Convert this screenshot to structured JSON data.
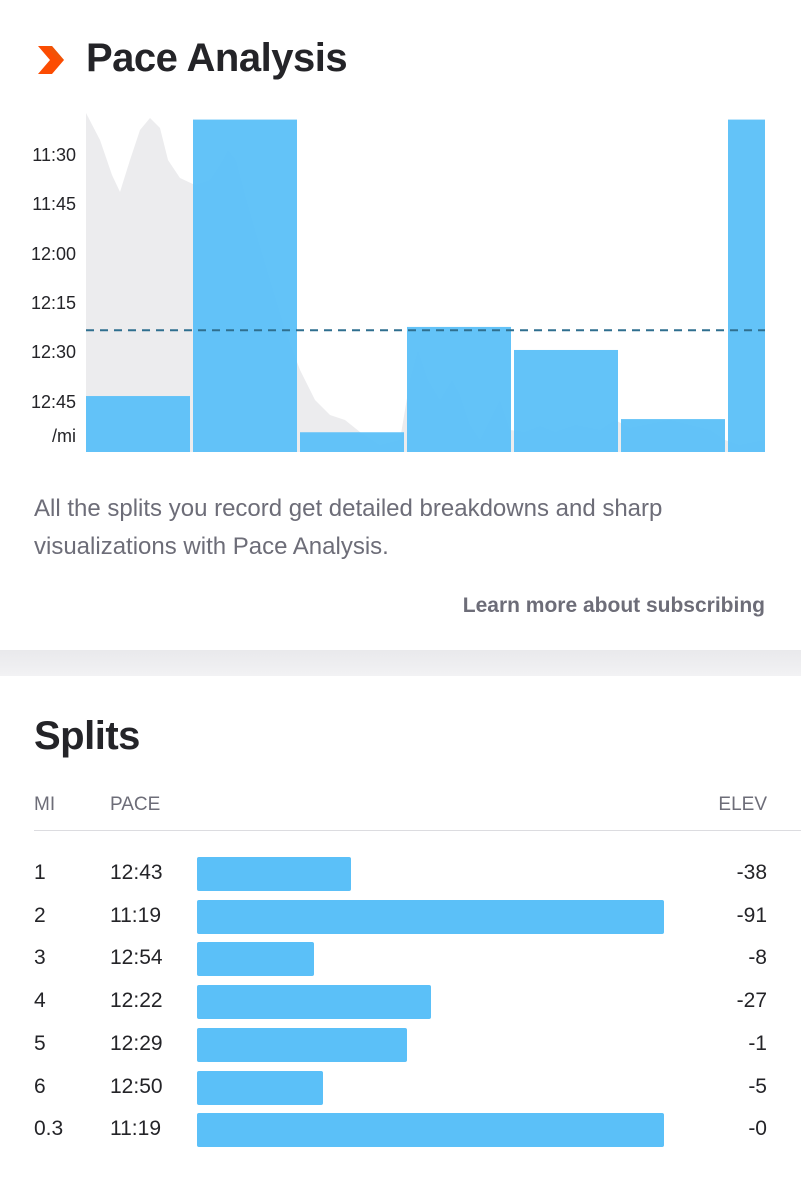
{
  "header": {
    "title": "Pace Analysis",
    "logo_icon": "strava-chevron-icon"
  },
  "chart_data": {
    "type": "bar",
    "title": "Pace Analysis",
    "ylabel": "/mi",
    "y_ticks": [
      "11:30",
      "11:45",
      "12:00",
      "12:15",
      "12:30",
      "12:45"
    ],
    "ylim_seconds": [
      677,
      780
    ],
    "categories": [
      "1",
      "2",
      "3",
      "4",
      "5",
      "6",
      "0.3"
    ],
    "distance_mi": [
      1,
      1,
      1,
      1,
      1,
      1,
      0.3
    ],
    "values_seconds": [
      763,
      679,
      774,
      742,
      749,
      770,
      679
    ],
    "average_pace_seconds": 743,
    "bar_color": "#5bc0f8",
    "average_line_color": "#2f6f8f",
    "elevation_fill_color": "#ececee"
  },
  "description": "All the splits you record get detailed breakdowns and sharp visualizations with Pace Analysis.",
  "learn_more": "Learn more about subscribing",
  "splits": {
    "title": "Splits",
    "headers": {
      "mi": "MI",
      "pace": "PACE",
      "elev": "ELEV"
    },
    "rows": [
      {
        "mi": "1",
        "pace": "12:43",
        "bar_fraction": 0.33,
        "elev": "-38"
      },
      {
        "mi": "2",
        "pace": "11:19",
        "bar_fraction": 1.0,
        "elev": "-91"
      },
      {
        "mi": "3",
        "pace": "12:54",
        "bar_fraction": 0.25,
        "elev": "-8"
      },
      {
        "mi": "4",
        "pace": "12:22",
        "bar_fraction": 0.5,
        "elev": "-27"
      },
      {
        "mi": "5",
        "pace": "12:29",
        "bar_fraction": 0.45,
        "elev": "-1"
      },
      {
        "mi": "6",
        "pace": "12:50",
        "bar_fraction": 0.27,
        "elev": "-5"
      },
      {
        "mi": "0.3",
        "pace": "11:19",
        "bar_fraction": 1.0,
        "elev": "-0"
      }
    ]
  }
}
